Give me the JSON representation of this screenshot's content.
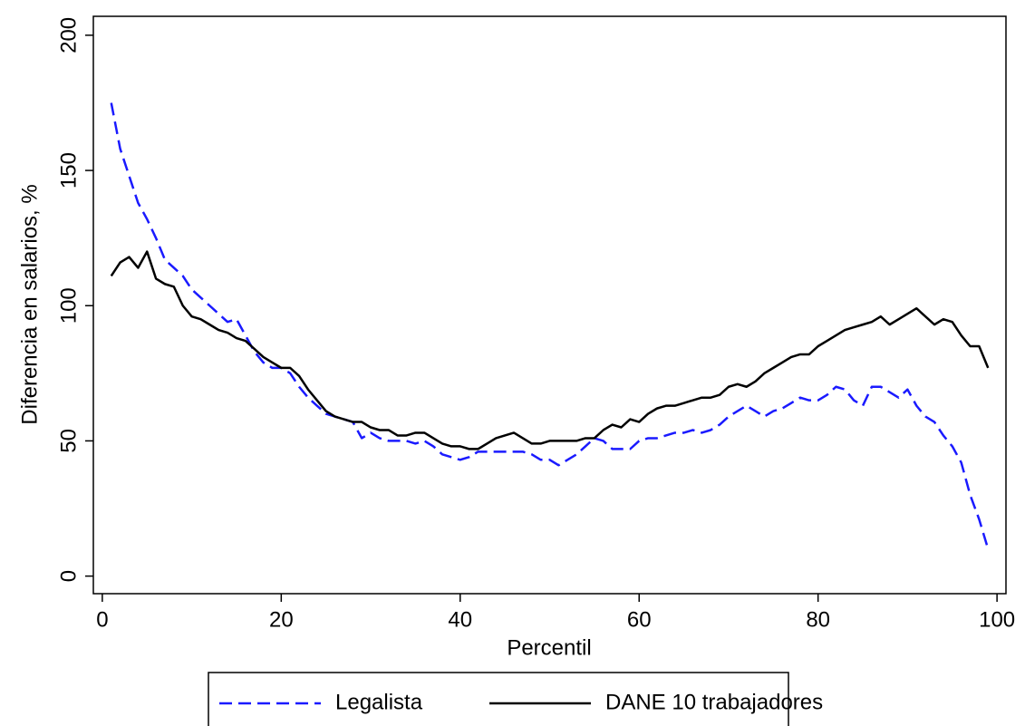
{
  "chart_data": {
    "type": "line",
    "x_label": "Percentil",
    "y_label": "Diferencia en salarios, %",
    "x": [
      1,
      2,
      3,
      4,
      5,
      6,
      7,
      8,
      9,
      10,
      11,
      12,
      13,
      14,
      15,
      16,
      17,
      18,
      19,
      20,
      21,
      22,
      23,
      24,
      25,
      26,
      27,
      28,
      29,
      30,
      31,
      32,
      33,
      34,
      35,
      36,
      37,
      38,
      39,
      40,
      41,
      42,
      43,
      44,
      45,
      46,
      47,
      48,
      49,
      50,
      51,
      52,
      53,
      54,
      55,
      56,
      57,
      58,
      59,
      60,
      61,
      62,
      63,
      64,
      65,
      66,
      67,
      68,
      69,
      70,
      71,
      72,
      73,
      74,
      75,
      76,
      77,
      78,
      79,
      80,
      81,
      82,
      83,
      84,
      85,
      86,
      87,
      88,
      89,
      90,
      91,
      92,
      93,
      94,
      95,
      96,
      97,
      98,
      99
    ],
    "series": [
      {
        "name": "Legalista",
        "color": "#1a1aff",
        "dash": true,
        "values": [
          175,
          158,
          148,
          138,
          132,
          125,
          117,
          114,
          111,
          106,
          103,
          100,
          97,
          94,
          95,
          89,
          83,
          79,
          77,
          77,
          75,
          70,
          66,
          63,
          60,
          59,
          58,
          57,
          51,
          53,
          51,
          50,
          50,
          50,
          49,
          50,
          48,
          45,
          44,
          43,
          44,
          46,
          46,
          46,
          46,
          46,
          46,
          45,
          43,
          43,
          41,
          43,
          45,
          48,
          51,
          50,
          47,
          47,
          47,
          50,
          51,
          51,
          52,
          53,
          53,
          54,
          53,
          54,
          56,
          59,
          61,
          63,
          61,
          59,
          61,
          62,
          64,
          66,
          65,
          65,
          67,
          70,
          69,
          65,
          63,
          70,
          70,
          68,
          66,
          69,
          63,
          59,
          57,
          52,
          48,
          42,
          30,
          21,
          10
        ]
      },
      {
        "name": "DANE 10 trabajadores",
        "color": "#000000",
        "dash": false,
        "values": [
          111,
          116,
          118,
          114,
          120,
          110,
          108,
          107,
          100,
          96,
          95,
          93,
          91,
          90,
          88,
          87,
          84,
          81,
          79,
          77,
          77,
          74,
          69,
          65,
          61,
          59,
          58,
          57,
          57,
          55,
          54,
          54,
          52,
          52,
          53,
          53,
          51,
          49,
          48,
          48,
          47,
          47,
          49,
          51,
          52,
          53,
          51,
          49,
          49,
          50,
          50,
          50,
          50,
          51,
          51,
          54,
          56,
          55,
          58,
          57,
          60,
          62,
          63,
          63,
          64,
          65,
          66,
          66,
          67,
          70,
          71,
          70,
          72,
          75,
          77,
          79,
          81,
          82,
          82,
          85,
          87,
          89,
          91,
          92,
          93,
          94,
          96,
          93,
          95,
          97,
          99,
          96,
          93,
          95,
          94,
          89,
          85,
          85,
          77
        ]
      }
    ],
    "xlim": [
      -1,
      101
    ],
    "ylim": [
      -6.5,
      207
    ],
    "xticks": [
      0,
      20,
      40,
      60,
      80,
      100
    ],
    "yticks": [
      0,
      50,
      100,
      150,
      200
    ],
    "grid": false,
    "legend": "bottom"
  }
}
